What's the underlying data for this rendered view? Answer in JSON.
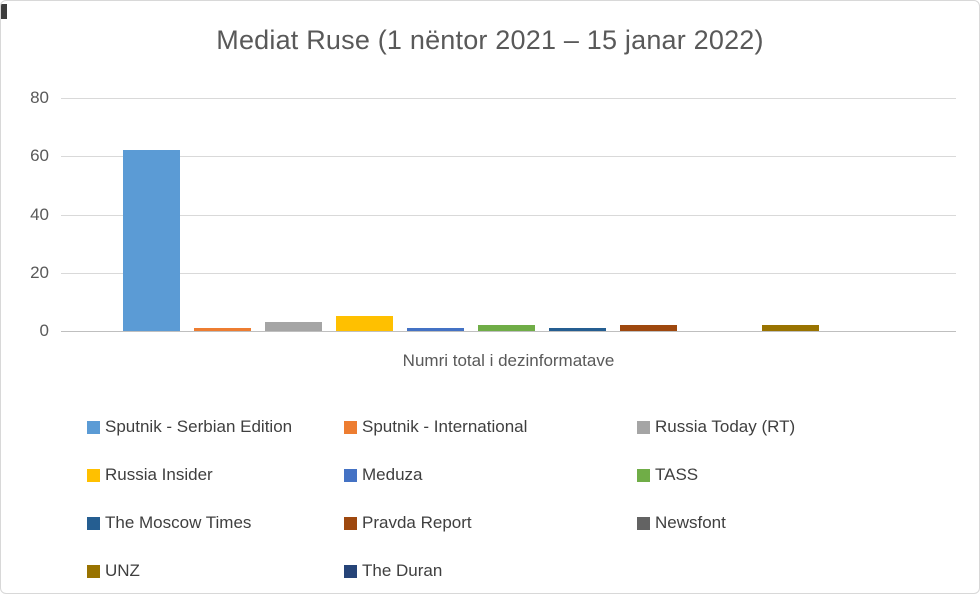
{
  "chart_data": {
    "type": "bar",
    "title": "Mediat Ruse (1 nëntor 2021 – 15 janar 2022)",
    "xlabel": "Numri total i dezinformatave",
    "ylabel": "",
    "categories": [
      "Numri total i dezinformatave"
    ],
    "series": [
      {
        "name": "Sputnik - Serbian Edition",
        "value": 62,
        "color": "#5B9BD5"
      },
      {
        "name": "Sputnik - International",
        "value": 1,
        "color": "#ED7D31"
      },
      {
        "name": "Russia Today (RT)",
        "value": 3,
        "color": "#A5A5A5"
      },
      {
        "name": "Russia Insider",
        "value": 5,
        "color": "#FFC000"
      },
      {
        "name": "Meduza",
        "value": 1,
        "color": "#4472C4"
      },
      {
        "name": "TASS",
        "value": 2,
        "color": "#70AD47"
      },
      {
        "name": "The Moscow Times",
        "value": 1,
        "color": "#255E91"
      },
      {
        "name": "Pravda Report",
        "value": 2,
        "color": "#9E480E"
      },
      {
        "name": "Newsfont",
        "value": 0,
        "color": "#636363"
      },
      {
        "name": "UNZ",
        "value": 2,
        "color": "#997300"
      },
      {
        "name": "The Duran",
        "value": 0,
        "color": "#264478"
      }
    ],
    "ylim": [
      0,
      80
    ],
    "y_ticks": [
      0,
      20,
      40,
      60,
      80
    ],
    "grid": true,
    "legend_position": "bottom",
    "colors": {
      "gridline": "#d9d9d9",
      "axis_line": "#bfbfbf",
      "title_text": "#595959",
      "tick_text": "#595959",
      "legend_text": "#3f3f3f",
      "background": "#ffffff"
    }
  }
}
